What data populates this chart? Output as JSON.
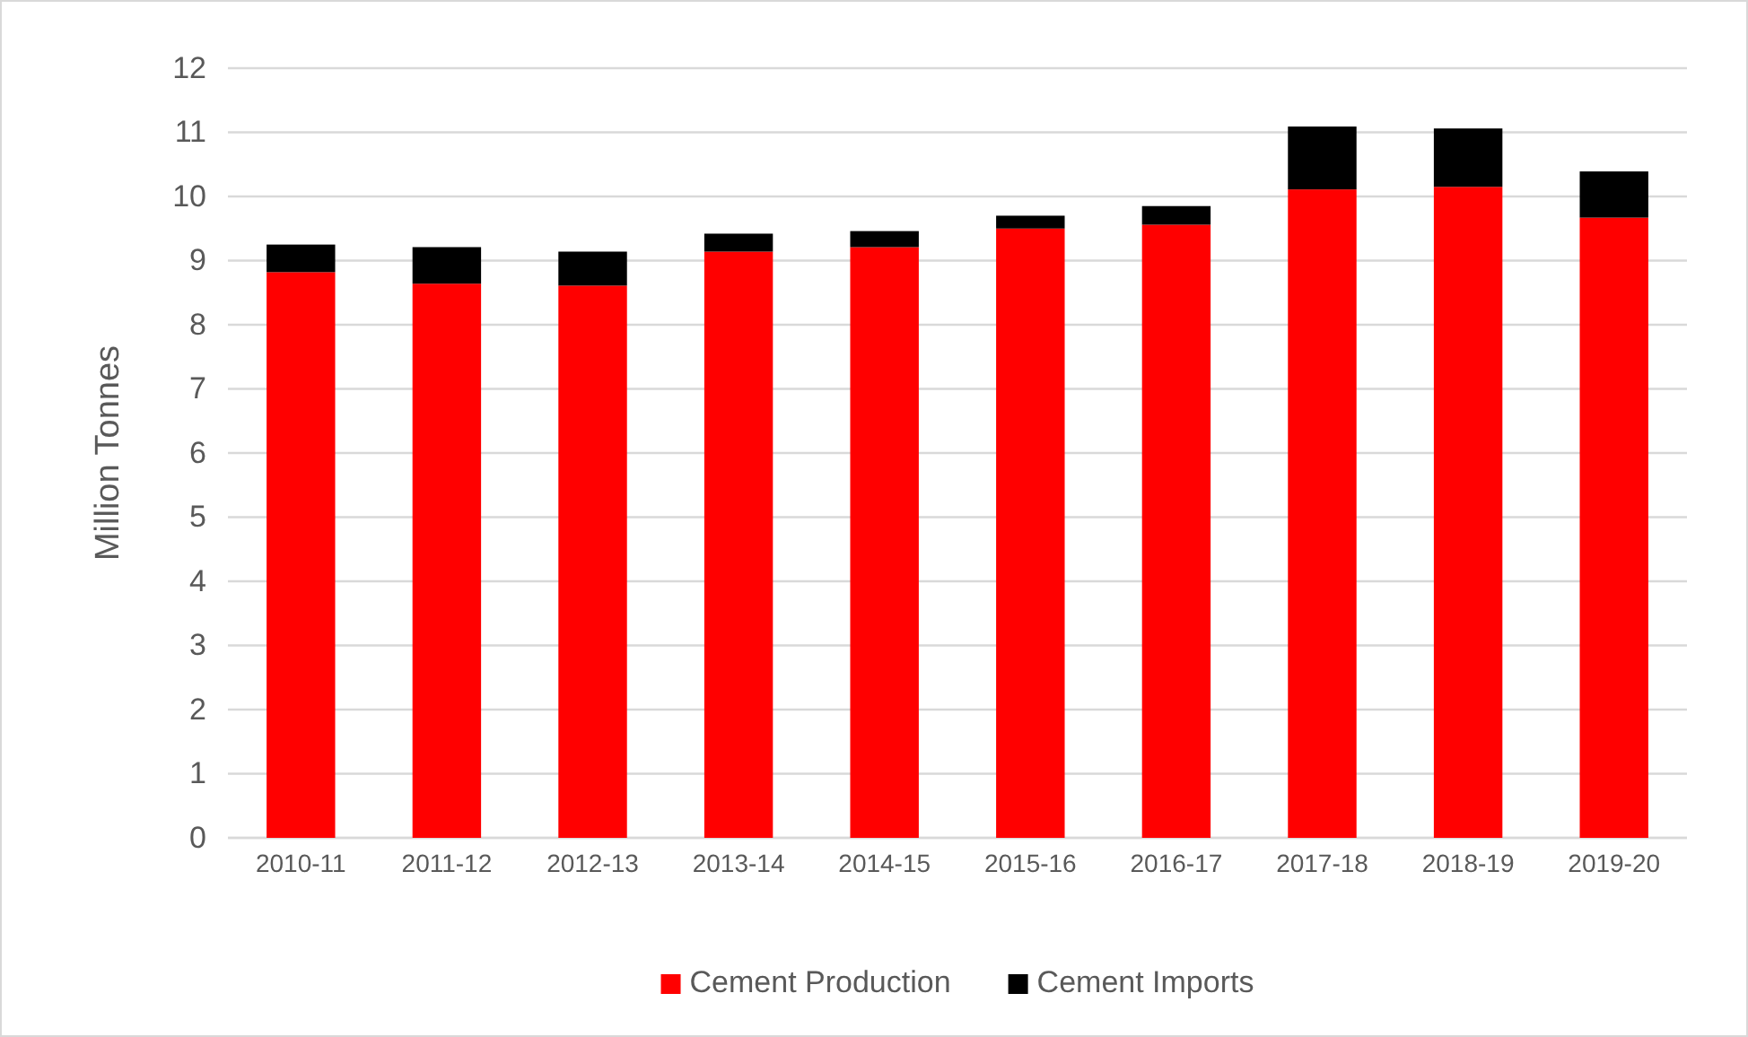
{
  "chart_data": {
    "type": "bar",
    "ylabel": "Million Tonnes",
    "categories": [
      "2010-11",
      "2011-12",
      "2012-13",
      "2013-14",
      "2014-15",
      "2015-16",
      "2016-17",
      "2017-18",
      "2018-19",
      "2019-20"
    ],
    "stacked": true,
    "series": [
      {
        "name": "Cement Production",
        "color": "#ff0000",
        "values": [
          8.82,
          8.64,
          8.61,
          9.14,
          9.21,
          9.5,
          9.56,
          10.11,
          10.15,
          9.67
        ]
      },
      {
        "name": "Cement Imports",
        "color": "#000000",
        "values": [
          0.43,
          0.57,
          0.53,
          0.28,
          0.25,
          0.2,
          0.29,
          0.98,
          0.91,
          0.72
        ]
      }
    ],
    "ylim": [
      0,
      12
    ],
    "yticks": [
      0,
      1,
      2,
      3,
      4,
      5,
      6,
      7,
      8,
      9,
      10,
      11,
      12
    ],
    "grid": "y",
    "legend": "bottom"
  }
}
